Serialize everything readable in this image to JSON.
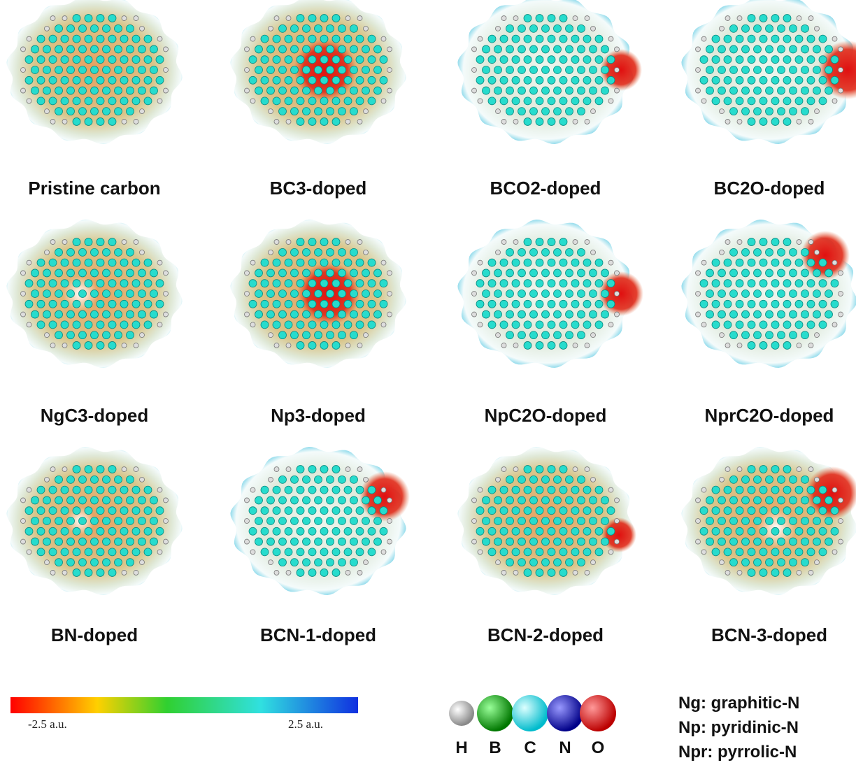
{
  "panels": [
    {
      "label": "Pristine carbon"
    },
    {
      "label": "BC3-doped"
    },
    {
      "label": "BCO2-doped"
    },
    {
      "label": "BC2O-doped"
    },
    {
      "label": "NgC3-doped"
    },
    {
      "label": "Np3-doped"
    },
    {
      "label": "NpC2O-doped"
    },
    {
      "label": "NprC2O-doped"
    },
    {
      "label": "BN-doped"
    },
    {
      "label": "BCN-1-doped"
    },
    {
      "label": "BCN-2-doped"
    },
    {
      "label": "BCN-3-doped"
    }
  ],
  "colorbar": {
    "min_label": "-2.5 a.u.",
    "max_label": "2.5 a.u."
  },
  "atoms": [
    "H",
    "B",
    "C",
    "N",
    "O"
  ],
  "notes": [
    "Ng: graphitic-N",
    "Np: pyridinic-N",
    "Npr: pyrrolic-N"
  ]
}
